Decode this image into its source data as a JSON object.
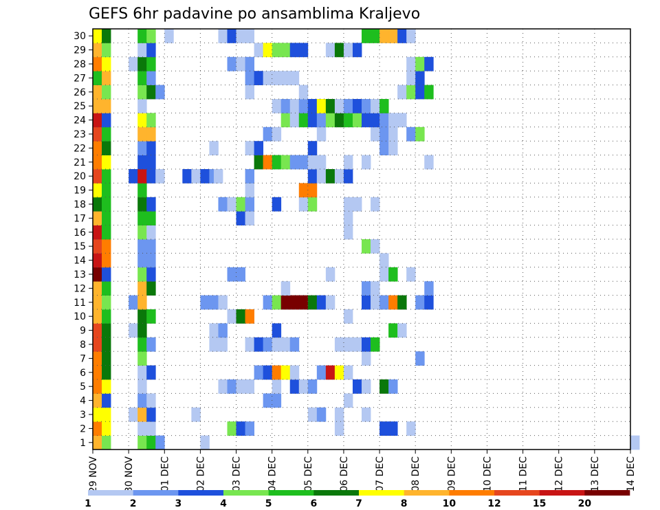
{
  "chart_data": {
    "type": "heatmap",
    "title": "GEFS 6hr padavine po ansamblima Kraljevo",
    "xlabel": "",
    "ylabel": "",
    "members": [
      1,
      2,
      3,
      4,
      5,
      6,
      7,
      8,
      9,
      10,
      11,
      12,
      13,
      14,
      15,
      16,
      17,
      18,
      19,
      20,
      21,
      22,
      23,
      24,
      25,
      26,
      27,
      28,
      29,
      30
    ],
    "x_ticks": [
      "29 NOV",
      "30 NOV",
      "01 DEC",
      "02 DEC",
      "03 DEC",
      "04 DEC",
      "05 DEC",
      "06 DEC",
      "07 DEC",
      "08 DEC",
      "09 DEC",
      "10 DEC",
      "11 DEC",
      "12 DEC",
      "13 DEC",
      "14 DEC"
    ],
    "xlim": [
      0,
      60
    ],
    "ylim": [
      0.5,
      30.5
    ],
    "grid": true,
    "legend": {
      "placement": "bottom",
      "bins": [
        {
          "label": "1",
          "color": "#b4c8f2"
        },
        {
          "label": "2",
          "color": "#6c96f0"
        },
        {
          "label": "3",
          "color": "#1e50dc"
        },
        {
          "label": "4",
          "color": "#78e650"
        },
        {
          "label": "5",
          "color": "#1ebe1e"
        },
        {
          "label": "6",
          "color": "#0a780a"
        },
        {
          "label": "7",
          "color": "#ffff00"
        },
        {
          "label": "8",
          "color": "#ffb42d"
        },
        {
          "label": "10",
          "color": "#ff7d00"
        },
        {
          "label": "12",
          "color": "#e6461e"
        },
        {
          "label": "15",
          "color": "#c81414"
        },
        {
          "label": "20",
          "color": "#780000"
        }
      ]
    },
    "cells": {
      "1": [
        [
          0,
          8
        ],
        [
          1,
          4
        ],
        [
          5,
          4
        ],
        [
          6,
          5
        ],
        [
          7,
          2
        ],
        [
          12,
          1
        ],
        [
          60,
          1
        ]
      ],
      "2": [
        [
          0,
          9
        ],
        [
          1,
          7
        ],
        [
          5,
          1
        ],
        [
          6,
          1
        ],
        [
          15,
          4
        ],
        [
          16,
          3
        ],
        [
          17,
          2
        ],
        [
          27,
          1
        ],
        [
          32,
          3
        ],
        [
          33,
          3
        ],
        [
          35,
          1
        ]
      ],
      "3": [
        [
          0,
          7
        ],
        [
          1,
          7
        ],
        [
          4,
          1
        ],
        [
          5,
          8
        ],
        [
          6,
          3
        ],
        [
          11,
          1
        ],
        [
          24,
          1
        ],
        [
          25,
          2
        ],
        [
          27,
          1
        ],
        [
          30,
          1
        ]
      ],
      "4": [
        [
          0,
          8
        ],
        [
          1,
          3
        ],
        [
          5,
          2
        ],
        [
          6,
          1
        ],
        [
          19,
          2
        ],
        [
          20,
          2
        ],
        [
          28,
          1
        ]
      ],
      "5": [
        [
          0,
          9
        ],
        [
          1,
          7
        ],
        [
          5,
          1
        ],
        [
          14,
          1
        ],
        [
          15,
          2
        ],
        [
          16,
          1
        ],
        [
          17,
          1
        ],
        [
          20,
          1
        ],
        [
          22,
          3
        ],
        [
          23,
          1
        ],
        [
          24,
          2
        ],
        [
          29,
          3
        ],
        [
          30,
          1
        ],
        [
          32,
          6
        ],
        [
          33,
          2
        ]
      ],
      "6": [
        [
          0,
          9
        ],
        [
          1,
          6
        ],
        [
          5,
          1
        ],
        [
          6,
          3
        ],
        [
          18,
          2
        ],
        [
          19,
          3
        ],
        [
          20,
          9
        ],
        [
          21,
          7
        ],
        [
          22,
          1
        ],
        [
          25,
          2
        ],
        [
          26,
          11
        ],
        [
          27,
          7
        ],
        [
          28,
          1
        ]
      ],
      "7": [
        [
          0,
          9
        ],
        [
          1,
          6
        ],
        [
          5,
          4
        ],
        [
          30,
          1
        ],
        [
          36,
          2
        ]
      ],
      "8": [
        [
          0,
          10
        ],
        [
          1,
          6
        ],
        [
          5,
          5
        ],
        [
          6,
          2
        ],
        [
          13,
          1
        ],
        [
          14,
          1
        ],
        [
          17,
          1
        ],
        [
          18,
          3
        ],
        [
          19,
          2
        ],
        [
          20,
          1
        ],
        [
          21,
          1
        ],
        [
          22,
          2
        ],
        [
          27,
          1
        ],
        [
          28,
          1
        ],
        [
          29,
          1
        ],
        [
          30,
          3
        ],
        [
          31,
          5
        ]
      ],
      "9": [
        [
          0,
          10
        ],
        [
          1,
          6
        ],
        [
          4,
          1
        ],
        [
          5,
          6
        ],
        [
          13,
          1
        ],
        [
          14,
          2
        ],
        [
          20,
          3
        ],
        [
          33,
          5
        ],
        [
          34,
          1
        ]
      ],
      "10": [
        [
          0,
          8
        ],
        [
          1,
          5
        ],
        [
          5,
          6
        ],
        [
          6,
          5
        ],
        [
          15,
          1
        ],
        [
          16,
          6
        ],
        [
          17,
          9
        ],
        [
          28,
          1
        ]
      ],
      "11": [
        [
          0,
          8
        ],
        [
          1,
          4
        ],
        [
          4,
          2
        ],
        [
          5,
          8
        ],
        [
          12,
          2
        ],
        [
          13,
          2
        ],
        [
          14,
          1
        ],
        [
          19,
          2
        ],
        [
          20,
          4
        ],
        [
          21,
          12
        ],
        [
          22,
          12
        ],
        [
          23,
          12
        ],
        [
          24,
          6
        ],
        [
          25,
          3
        ],
        [
          26,
          1
        ],
        [
          30,
          3
        ],
        [
          31,
          1
        ],
        [
          32,
          2
        ],
        [
          33,
          9
        ],
        [
          34,
          6
        ],
        [
          36,
          2
        ],
        [
          37,
          3
        ]
      ],
      "12": [
        [
          0,
          8
        ],
        [
          1,
          5
        ],
        [
          5,
          8
        ],
        [
          6,
          6
        ],
        [
          21,
          1
        ],
        [
          30,
          2
        ],
        [
          31,
          1
        ],
        [
          37,
          2
        ]
      ],
      "13": [
        [
          0,
          12
        ],
        [
          1,
          3
        ],
        [
          5,
          4
        ],
        [
          6,
          3
        ],
        [
          15,
          2
        ],
        [
          16,
          2
        ],
        [
          26,
          1
        ],
        [
          32,
          1
        ],
        [
          33,
          5
        ],
        [
          35,
          1
        ]
      ],
      "14": [
        [
          0,
          11
        ],
        [
          1,
          9
        ],
        [
          5,
          2
        ],
        [
          6,
          2
        ],
        [
          32,
          1
        ]
      ],
      "15": [
        [
          0,
          10
        ],
        [
          1,
          9
        ],
        [
          5,
          2
        ],
        [
          6,
          2
        ],
        [
          30,
          4
        ],
        [
          31,
          1
        ]
      ],
      "16": [
        [
          0,
          11
        ],
        [
          1,
          5
        ],
        [
          5,
          4
        ],
        [
          6,
          1
        ],
        [
          28,
          1
        ]
      ],
      "17": [
        [
          0,
          8
        ],
        [
          1,
          5
        ],
        [
          5,
          5
        ],
        [
          6,
          5
        ],
        [
          16,
          3
        ],
        [
          17,
          1
        ],
        [
          28,
          1
        ]
      ],
      "18": [
        [
          0,
          6
        ],
        [
          1,
          5
        ],
        [
          5,
          6
        ],
        [
          6,
          3
        ],
        [
          14,
          2
        ],
        [
          15,
          1
        ],
        [
          16,
          4
        ],
        [
          17,
          2
        ],
        [
          20,
          3
        ],
        [
          23,
          1
        ],
        [
          24,
          4
        ],
        [
          28,
          1
        ],
        [
          29,
          1
        ],
        [
          31,
          1
        ]
      ],
      "19": [
        [
          0,
          7
        ],
        [
          1,
          5
        ],
        [
          5,
          5
        ],
        [
          17,
          1
        ],
        [
          23,
          9
        ],
        [
          24,
          9
        ]
      ],
      "20": [
        [
          0,
          10
        ],
        [
          1,
          5
        ],
        [
          4,
          3
        ],
        [
          5,
          11
        ],
        [
          6,
          3
        ],
        [
          7,
          1
        ],
        [
          10,
          3
        ],
        [
          11,
          1
        ],
        [
          12,
          3
        ],
        [
          13,
          2
        ],
        [
          13.5,
          1
        ],
        [
          17,
          2
        ],
        [
          24,
          3
        ],
        [
          25,
          1
        ],
        [
          26,
          6
        ],
        [
          27,
          1
        ],
        [
          28,
          3
        ]
      ],
      "21": [
        [
          0,
          9
        ],
        [
          1,
          7
        ],
        [
          5,
          3
        ],
        [
          6,
          3
        ],
        [
          18,
          6
        ],
        [
          19,
          9
        ],
        [
          20,
          5
        ],
        [
          21,
          4
        ],
        [
          22,
          2
        ],
        [
          23,
          2
        ],
        [
          24,
          1
        ],
        [
          25,
          1
        ],
        [
          28,
          1
        ],
        [
          30,
          1
        ],
        [
          37,
          1
        ]
      ],
      "22": [
        [
          0,
          9
        ],
        [
          1,
          6
        ],
        [
          5,
          2
        ],
        [
          6,
          3
        ],
        [
          13,
          1
        ],
        [
          17,
          1
        ],
        [
          18,
          3
        ],
        [
          24,
          3
        ],
        [
          32,
          2
        ],
        [
          33,
          1
        ]
      ],
      "23": [
        [
          0,
          10
        ],
        [
          1,
          5
        ],
        [
          5,
          8
        ],
        [
          6,
          8
        ],
        [
          19,
          2
        ],
        [
          20,
          1
        ],
        [
          25,
          1
        ],
        [
          31,
          1
        ],
        [
          32,
          2
        ],
        [
          33,
          1
        ],
        [
          35,
          2
        ],
        [
          36,
          4
        ]
      ],
      "24": [
        [
          0,
          11
        ],
        [
          1,
          3
        ],
        [
          5,
          7
        ],
        [
          6,
          4
        ],
        [
          21,
          4
        ],
        [
          22,
          1
        ],
        [
          23,
          5
        ],
        [
          24,
          3
        ],
        [
          25,
          2
        ],
        [
          26,
          4
        ],
        [
          27,
          6
        ],
        [
          28,
          5
        ],
        [
          29,
          4
        ],
        [
          30,
          3
        ],
        [
          31,
          3
        ],
        [
          32,
          2
        ],
        [
          33,
          1
        ],
        [
          34,
          1
        ]
      ],
      "25": [
        [
          0,
          8
        ],
        [
          1,
          8
        ],
        [
          5,
          1
        ],
        [
          20,
          1
        ],
        [
          21,
          2
        ],
        [
          22,
          1
        ],
        [
          23,
          2
        ],
        [
          24,
          3
        ],
        [
          25,
          7
        ],
        [
          26,
          6
        ],
        [
          27,
          1
        ],
        [
          28,
          2
        ],
        [
          29,
          3
        ],
        [
          30,
          2
        ],
        [
          31,
          1
        ],
        [
          32,
          5
        ]
      ],
      "26": [
        [
          0,
          8
        ],
        [
          1,
          4
        ],
        [
          5,
          4
        ],
        [
          6,
          6
        ],
        [
          7,
          2
        ],
        [
          17,
          1
        ],
        [
          23,
          1
        ],
        [
          34,
          1
        ],
        [
          35,
          4
        ],
        [
          36,
          3
        ],
        [
          37,
          5
        ]
      ],
      "27": [
        [
          0,
          5
        ],
        [
          1,
          8
        ],
        [
          5,
          5
        ],
        [
          6,
          2
        ],
        [
          17,
          2
        ],
        [
          18,
          3
        ],
        [
          19,
          1
        ],
        [
          20,
          1
        ],
        [
          21,
          1
        ],
        [
          22,
          1
        ],
        [
          35,
          1
        ],
        [
          36,
          3
        ]
      ],
      "28": [
        [
          0,
          9
        ],
        [
          1,
          7
        ],
        [
          4,
          1
        ],
        [
          5,
          6
        ],
        [
          6,
          5
        ],
        [
          15,
          2
        ],
        [
          16,
          1
        ],
        [
          17,
          2
        ],
        [
          35,
          1
        ],
        [
          36,
          4
        ],
        [
          37,
          3
        ]
      ],
      "29": [
        [
          0,
          8
        ],
        [
          1,
          4
        ],
        [
          5,
          1
        ],
        [
          6,
          3
        ],
        [
          18,
          1
        ],
        [
          19,
          7
        ],
        [
          20,
          4
        ],
        [
          21,
          4
        ],
        [
          22,
          3
        ],
        [
          23,
          3
        ],
        [
          26,
          1
        ],
        [
          27,
          6
        ],
        [
          28,
          1
        ],
        [
          29,
          3
        ]
      ],
      "30": [
        [
          0,
          7
        ],
        [
          1,
          6
        ],
        [
          5,
          5
        ],
        [
          6,
          4
        ],
        [
          8,
          1
        ],
        [
          14,
          1
        ],
        [
          15,
          3
        ],
        [
          16,
          1
        ],
        [
          17,
          1
        ],
        [
          30,
          5
        ],
        [
          31,
          5
        ],
        [
          32,
          8
        ],
        [
          33,
          8
        ],
        [
          34,
          3
        ],
        [
          35,
          1
        ]
      ]
    }
  }
}
